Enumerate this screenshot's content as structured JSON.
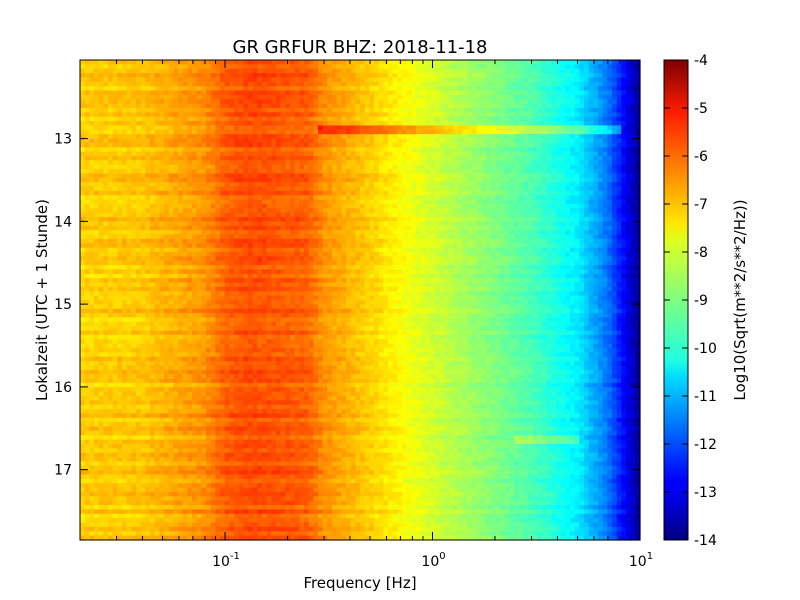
{
  "chart_data": {
    "type": "heatmap",
    "title": "GR GRFUR BHZ: 2018-11-18",
    "xlabel": "Frequency [Hz]",
    "ylabel": "Lokalzeit (UTC + 1 Stunde)",
    "x_scale": "log",
    "xlim": [
      0.02,
      10
    ],
    "ylim": [
      12.05,
      17.85
    ],
    "y_inverted": true,
    "x_ticks": [
      {
        "base": "10",
        "exp": "-1",
        "value": 0.1
      },
      {
        "base": "10",
        "exp": "0",
        "value": 1
      },
      {
        "base": "10",
        "exp": "1",
        "value": 10
      }
    ],
    "y_ticks": [
      {
        "label": "13",
        "value": 13
      },
      {
        "label": "14",
        "value": 14
      },
      {
        "label": "15",
        "value": 15
      },
      {
        "label": "16",
        "value": 16
      },
      {
        "label": "17",
        "value": 17
      }
    ],
    "colorbar": {
      "label": "Log10(Sqrt(m**2/s**2/Hz))",
      "range": [
        -14,
        -4
      ],
      "ticks": [
        "-4",
        "-5",
        "-6",
        "-7",
        "-8",
        "-9",
        "-10",
        "-11",
        "-12",
        "-13",
        "-14"
      ],
      "colormap": "jet"
    },
    "psd_profile": {
      "frequency_hz": [
        0.02,
        0.04,
        0.06,
        0.08,
        0.1,
        0.13,
        0.18,
        0.25,
        0.3,
        0.5,
        0.8,
        1.2,
        2,
        3,
        5,
        7,
        9,
        10
      ],
      "log10_amplitude": [
        -7.3,
        -7.2,
        -6.9,
        -6.7,
        -6.2,
        -6.0,
        -6.1,
        -6.2,
        -6.7,
        -7.3,
        -7.9,
        -8.4,
        -9.0,
        -9.5,
        -10.4,
        -11.6,
        -13.2,
        -13.8
      ]
    },
    "features": [
      {
        "type": "narrow-band line",
        "time": 12.85,
        "freq_min": 0.28,
        "freq_max": 8,
        "delta": 1.2
      },
      {
        "type": "narrow-band line",
        "time": 16.6,
        "freq_min": 2.5,
        "freq_max": 5,
        "delta": 0.8
      }
    ]
  }
}
